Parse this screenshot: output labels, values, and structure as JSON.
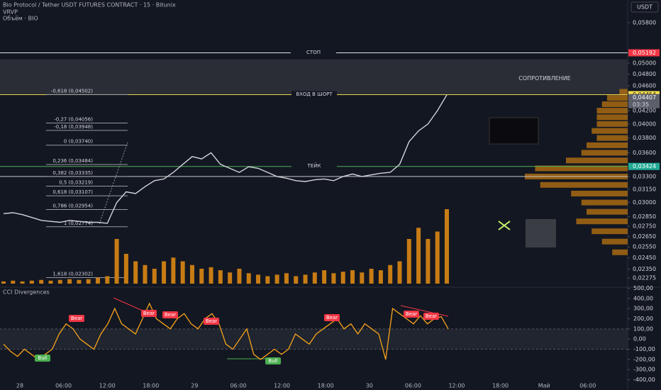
{
  "header": {
    "symbol": "Bio Protocol / Tether USDT FUTURES CONTRACT · 15 · Bitunix",
    "indicator_1": "VRVP",
    "indicator_2": "Объём · BIO",
    "currency_button": "USDT"
  },
  "time_axis": [
    "28",
    "06:00",
    "12:00",
    "18:00",
    "29",
    "06:00",
    "12:00",
    "18:00",
    "30",
    "06:00",
    "12:00",
    "18:00",
    "Май",
    "06:00"
  ],
  "chart_data": [
    {
      "type": "line",
      "log_scale": true,
      "color": "#d1d4dc",
      "values": [
        0.0288,
        0.0289,
        0.0287,
        0.0284,
        0.0281,
        0.028,
        0.0279,
        0.0281,
        0.028,
        0.0279,
        0.0279,
        0.0278,
        0.03,
        0.0312,
        0.031,
        0.0318,
        0.0325,
        0.0327,
        0.0335,
        0.0345,
        0.0355,
        0.0352,
        0.036,
        0.0345,
        0.034,
        0.0335,
        0.0342,
        0.034,
        0.0335,
        0.033,
        0.0328,
        0.0325,
        0.0324,
        0.0326,
        0.0327,
        0.0325,
        0.033,
        0.0333,
        0.033,
        0.0332,
        0.0334,
        0.0335,
        0.0345,
        0.0375,
        0.039,
        0.04,
        0.042,
        0.0445
      ],
      "volume": {
        "color": "#c77c14",
        "values": [
          3,
          4,
          3,
          4,
          5,
          4,
          5,
          6,
          5,
          6,
          8,
          10,
          60,
          40,
          30,
          25,
          20,
          30,
          35,
          30,
          25,
          20,
          22,
          18,
          15,
          20,
          14,
          12,
          10,
          12,
          14,
          10,
          12,
          15,
          18,
          14,
          16,
          18,
          15,
          20,
          18,
          25,
          30,
          60,
          75,
          60,
          70,
          100
        ]
      },
      "ylim": [
        0.022,
        0.063
      ],
      "yticks": [
        {
          "value": 0.058,
          "label": "0,05800"
        },
        {
          "value": 0.05,
          "label": "0,05000"
        },
        {
          "value": 0.048,
          "label": "0,04800"
        },
        {
          "value": 0.046,
          "label": "0,04600"
        },
        {
          "value": 0.042,
          "label": "0,04200"
        },
        {
          "value": 0.04,
          "label": "0,04000"
        },
        {
          "value": 0.038,
          "label": "0,03800"
        },
        {
          "value": 0.036,
          "label": "0,03600"
        },
        {
          "value": 0.033,
          "label": "0,03300"
        },
        {
          "value": 0.0315,
          "label": "0,03150"
        },
        {
          "value": 0.03,
          "label": "0,03000"
        },
        {
          "value": 0.0285,
          "label": "0,02850"
        },
        {
          "value": 0.0275,
          "label": "0,02750"
        },
        {
          "value": 0.0265,
          "label": "0,02650"
        },
        {
          "value": 0.0255,
          "label": "0,02550"
        },
        {
          "value": 0.0245,
          "label": "0,02450"
        },
        {
          "value": 0.0235,
          "label": "0,02350"
        },
        {
          "value": 0.02275,
          "label": "0,02275"
        }
      ],
      "levels": [
        {
          "label": "СТОП",
          "value": 0.05192,
          "color": "#e0e3eb"
        },
        {
          "label": "ВХОД В ШОРТ",
          "value": 0.04454,
          "color": "#e8d44d"
        },
        {
          "label": "ТЕЙК",
          "value": 0.03424,
          "color": "#4caf50"
        },
        {
          "value": 0.033,
          "color": "#c8c8c8"
        }
      ],
      "zone": {
        "label": "СОПРОТИВЛЕНИЕ",
        "from": 0.04454,
        "to": 0.0507,
        "color": "#2a2d36"
      },
      "fib_levels": [
        {
          "value": 0.04502,
          "label": "-0,618 (0,04502)"
        },
        {
          "value": 0.04056,
          "label": "-0,27 (0,04056)"
        },
        {
          "value": 0.03948,
          "label": "-0,18 (0,03948)"
        },
        {
          "value": 0.0374,
          "label": "0 (0,03740)"
        },
        {
          "value": 0.03484,
          "label": "0,236 (0,03484)"
        },
        {
          "value": 0.03335,
          "label": "0,382 (0,03335)"
        },
        {
          "value": 0.03219,
          "label": "0,5 (0,03219)"
        },
        {
          "value": 0.03107,
          "label": "0,618 (0,03107)"
        },
        {
          "value": 0.02954,
          "label": "0,786 (0,02954)"
        },
        {
          "value": 0.02774,
          "label": "1 (0,02774)"
        },
        {
          "value": 0.02302,
          "label": "1,618 (0,02302)"
        }
      ],
      "price_labels": [
        {
          "value": 0.05192,
          "label": "0,05192",
          "color": "#f23645"
        },
        {
          "value": 0.04454,
          "label": "0,04454",
          "color": "#f7e04a"
        },
        {
          "value": 0.04407,
          "label": "0,04407",
          "color": "#5d606b"
        },
        {
          "value": 0.03424,
          "label": "0,03424",
          "color": "#22ab94"
        }
      ],
      "countdown": "03:35",
      "volume_profile": {
        "color": "#a86a12",
        "prices": [
          0.025,
          0.026,
          0.027,
          0.028,
          0.029,
          0.03,
          0.031,
          0.032,
          0.033,
          0.034,
          0.035,
          0.036,
          0.037,
          0.038,
          0.039,
          0.04,
          0.041,
          0.042,
          0.043,
          0.044,
          0.045
        ],
        "values": [
          15,
          25,
          35,
          50,
          40,
          45,
          55,
          85,
          100,
          90,
          60,
          45,
          40,
          30,
          35,
          30,
          30,
          30,
          25,
          20,
          8
        ]
      }
    },
    {
      "type": "line",
      "title": "CCI Divergences",
      "color": "#f7a21b",
      "values": [
        -50,
        -120,
        -170,
        -100,
        -150,
        -200,
        -150,
        -100,
        50,
        150,
        100,
        0,
        -50,
        -100,
        50,
        150,
        300,
        150,
        100,
        50,
        200,
        350,
        200,
        150,
        100,
        200,
        250,
        150,
        100,
        200,
        250,
        150,
        -50,
        -100,
        0,
        100,
        -150,
        -200,
        -150,
        -100,
        -150,
        -100,
        50,
        0,
        -50,
        50,
        100,
        150,
        200,
        100,
        150,
        50,
        150,
        100,
        50,
        -200,
        300,
        250,
        200,
        150,
        230,
        150,
        200,
        220,
        100
      ],
      "ylim": [
        -410,
        510
      ],
      "yticks": [
        {
          "value": 500,
          "label": "500,00"
        },
        {
          "value": 400,
          "label": "400,00"
        },
        {
          "value": 300,
          "label": "300,00"
        },
        {
          "value": 200,
          "label": "200,00"
        },
        {
          "value": 100,
          "label": "100,00"
        },
        {
          "value": 0,
          "label": "0,00"
        },
        {
          "value": -100,
          "label": "-100,00"
        },
        {
          "value": -200,
          "label": "-200,00"
        },
        {
          "value": -300,
          "label": "-300,00"
        },
        {
          "value": -400,
          "label": "-400,00"
        }
      ],
      "band": [
        -100,
        100
      ],
      "divergence_labels": [
        "Bull",
        "Bear",
        "Bear",
        "Bear",
        "Bear",
        "Bull",
        "Bear",
        "Bear",
        "Bear"
      ]
    }
  ]
}
